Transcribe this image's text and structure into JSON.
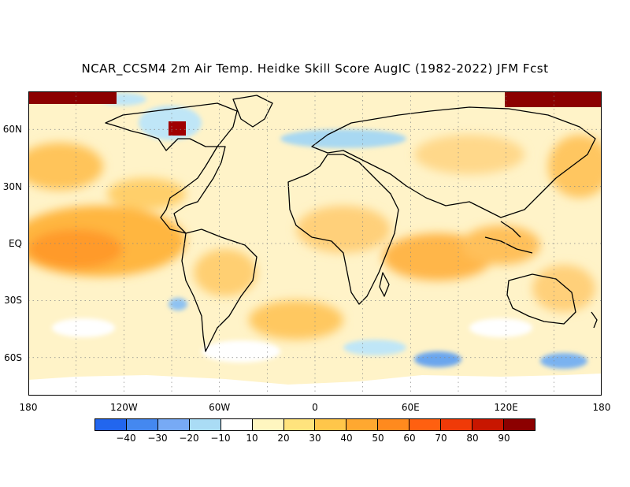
{
  "title": "NCAR_CCSM4 2m Air Temp. Heidke Skill Score AugIC (1982-2022) JFM Fcst",
  "map": {
    "lat_labels": [
      {
        "text": "60N",
        "lat": 60
      },
      {
        "text": "30N",
        "lat": 30
      },
      {
        "text": "EQ",
        "lat": 0
      },
      {
        "text": "30S",
        "lat": -30
      },
      {
        "text": "60S",
        "lat": -60
      }
    ],
    "lon_labels": [
      {
        "text": "180",
        "lon": -180
      },
      {
        "text": "120W",
        "lon": -120
      },
      {
        "text": "60W",
        "lon": -60
      },
      {
        "text": "0",
        "lon": 0
      },
      {
        "text": "60E",
        "lon": 60
      },
      {
        "text": "120E",
        "lon": 120
      },
      {
        "text": "180",
        "lon": 180
      }
    ],
    "lat_range": [
      -80,
      80
    ],
    "lon_range": [
      -180,
      180
    ],
    "grid_lines": "dotted at 30 degree intervals"
  },
  "colorbar": {
    "swatches": [
      "#2266ee",
      "#4488f0",
      "#77aaf5",
      "#aadcf5",
      "#ffffff",
      "#fff6c0",
      "#ffe37d",
      "#ffc64a",
      "#ffa830",
      "#ff8a1e",
      "#ff6010",
      "#f03a08",
      "#c81600",
      "#8c0000"
    ],
    "labels": [
      "−40",
      "−30",
      "−20",
      "−10",
      "10",
      "20",
      "30",
      "40",
      "50",
      "60",
      "70",
      "80",
      "90"
    ]
  }
}
